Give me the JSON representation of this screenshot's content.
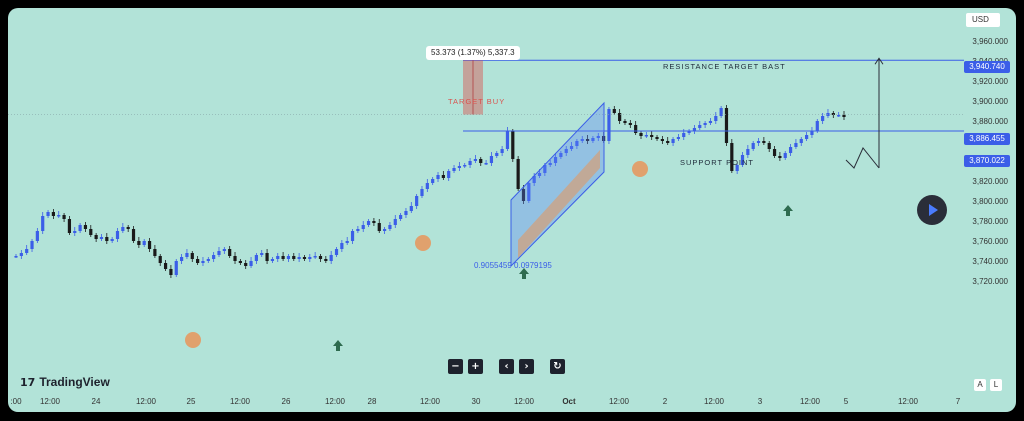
{
  "app": {
    "brand": "TradingView",
    "currency": "USD"
  },
  "price_axis": {
    "labels": [
      "3,960.000",
      "3,940.000",
      "3,920.000",
      "3,900.000",
      "3,880.000",
      "3,860.000",
      "3,840.000",
      "3,820.000",
      "3,800.000",
      "3,780.000",
      "3,760.000",
      "3,740.000",
      "3,720.000"
    ],
    "resistance_tag": "3,940.740",
    "current_tag": "3,886.455",
    "support_tag": "3,870.022"
  },
  "time_axis": {
    "labels": [
      ":00",
      "12:00",
      "24",
      "12:00",
      "25",
      "12:00",
      "26",
      "12:00",
      "28",
      "12:00",
      "30",
      "12:00",
      "Oct",
      "12:00",
      "2",
      "12:00",
      "3",
      "12:00",
      "5",
      "12:00",
      "7"
    ]
  },
  "annotations": {
    "measure_tooltip": "53.373 (1.37%) 5,337.3",
    "target_buy": "TARGET BUY",
    "resistance": "RESISTANCE TARGET BAST",
    "support": "SUPPORT POINT",
    "fib_text": "0.9055459 0.0979195"
  },
  "toolbar": {
    "zoom_out": "−",
    "zoom_in": "+",
    "scroll_left": "‹",
    "scroll_right": "›",
    "reset": "↻"
  },
  "axis_toggles": {
    "auto": "A",
    "log": "L"
  },
  "icons": {
    "play": "play-icon",
    "arrow_up": "arrow-up-icon",
    "reset": "reset-icon"
  },
  "colors": {
    "background": "#b2e3d8",
    "bull": "#3b5ee8",
    "bear": "#1a1a1a",
    "accent_blue": "#3b5ee8",
    "target_red": "#d9534f",
    "highlight_orange": "#e8955a",
    "arrow_green": "#2e6b4f"
  },
  "chart_data": {
    "type": "candlestick",
    "ylim": [
      3710,
      3975
    ],
    "series_close_path": [
      3745,
      3748,
      3752,
      3760,
      3770,
      3785,
      3789,
      3785,
      3786,
      3782,
      3768,
      3770,
      3776,
      3772,
      3766,
      3762,
      3764,
      3760,
      3762,
      3770,
      3774,
      3772,
      3760,
      3756,
      3760,
      3752,
      3745,
      3738,
      3732,
      3726,
      3740,
      3744,
      3748,
      3742,
      3738,
      3740,
      3742,
      3746,
      3750,
      3752,
      3745,
      3740,
      3738,
      3735,
      3740,
      3746,
      3748,
      3740,
      3742,
      3745,
      3742,
      3745,
      3742,
      3744,
      3742,
      3744,
      3745,
      3742,
      3740,
      3746,
      3752,
      3758,
      3760,
      3770,
      3772,
      3776,
      3780,
      3778,
      3770,
      3772,
      3776,
      3782,
      3786,
      3790,
      3795,
      3805,
      3812,
      3818,
      3822,
      3826,
      3823,
      3830,
      3833,
      3835,
      3836,
      3840,
      3842,
      3838,
      3838,
      3845,
      3848,
      3852,
      3870,
      3842,
      3812,
      3800,
      3818,
      3825,
      3828,
      3836,
      3838,
      3844,
      3848,
      3852,
      3855,
      3860,
      3862,
      3860,
      3863,
      3865,
      3860,
      3892,
      3888,
      3880,
      3878,
      3876,
      3868,
      3865,
      3866,
      3864,
      3862,
      3860,
      3858,
      3862,
      3864,
      3868,
      3870,
      3873,
      3876,
      3878,
      3880,
      3885,
      3893,
      3858,
      3830,
      3836,
      3846,
      3852,
      3858,
      3860,
      3858,
      3852,
      3845,
      3843,
      3848,
      3854,
      3858,
      3862,
      3866,
      3870,
      3880,
      3885,
      3888,
      3886,
      3886,
      3884
    ]
  }
}
